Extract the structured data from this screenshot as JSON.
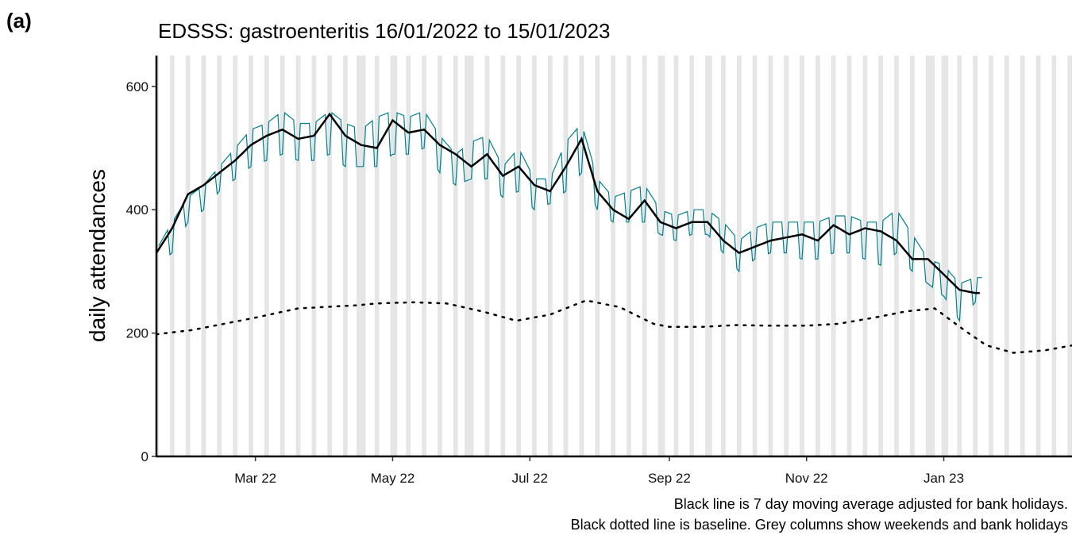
{
  "panel_label": "(a)",
  "chart_data": {
    "type": "line",
    "title": "EDSSS: gastroenteritis 16/01/2022 to 15/01/2023",
    "xlabel": "",
    "ylabel": "daily attendances",
    "ylim": [
      0,
      650
    ],
    "xlim": [
      "2022-01-16",
      "2023-02-27"
    ],
    "y_ticks": [
      0,
      200,
      400,
      600
    ],
    "x_ticks": [
      {
        "date": "2022-03-01",
        "label": "Mar 22"
      },
      {
        "date": "2022-05-01",
        "label": "May 22"
      },
      {
        "date": "2022-07-01",
        "label": "Jul 22"
      },
      {
        "date": "2022-09-01",
        "label": "Sep 22"
      },
      {
        "date": "2022-11-01",
        "label": "Nov 22"
      },
      {
        "date": "2023-01-01",
        "label": "Jan 23"
      }
    ],
    "grid": false,
    "shading": "weekends and bank holidays",
    "bank_holidays": [
      "2022-04-15",
      "2022-04-18",
      "2022-05-02",
      "2022-06-02",
      "2022-06-03",
      "2022-08-29",
      "2022-09-19",
      "2022-12-26",
      "2022-12-27",
      "2023-01-02"
    ],
    "colors": {
      "daily": "#00818f",
      "average": "#000000",
      "baseline": "#000000",
      "shade": "#e5e5e5"
    },
    "series": [
      {
        "style": "solid-teal",
        "x": [
          "2022-01-16",
          "2022-01-23",
          "2022-01-30",
          "2022-02-06",
          "2022-02-13",
          "2022-02-20",
          "2022-02-27",
          "2022-03-06",
          "2022-03-13",
          "2022-03-20",
          "2022-03-27",
          "2022-04-03",
          "2022-04-10",
          "2022-04-17",
          "2022-04-24",
          "2022-05-01",
          "2022-05-08",
          "2022-05-15",
          "2022-05-22",
          "2022-05-29",
          "2022-06-05",
          "2022-06-12",
          "2022-06-19",
          "2022-06-26",
          "2022-07-03",
          "2022-07-10",
          "2022-07-17",
          "2022-07-24",
          "2022-07-31",
          "2022-08-07",
          "2022-08-14",
          "2022-08-21",
          "2022-08-28",
          "2022-09-04",
          "2022-09-11",
          "2022-09-18",
          "2022-09-25",
          "2022-10-02",
          "2022-10-09",
          "2022-10-16",
          "2022-10-23",
          "2022-10-30",
          "2022-11-06",
          "2022-11-13",
          "2022-11-20",
          "2022-11-27",
          "2022-12-04",
          "2022-12-11",
          "2022-12-18",
          "2022-12-25",
          "2023-01-01",
          "2023-01-08",
          "2023-01-15"
        ],
        "weekday_level": [
          335,
          380,
          420,
          440,
          470,
          500,
          530,
          540,
          560,
          540,
          540,
          560,
          540,
          530,
          550,
          560,
          550,
          560,
          520,
          490,
          510,
          520,
          470,
          500,
          450,
          450,
          510,
          540,
          450,
          420,
          430,
          440,
          400,
          390,
          400,
          400,
          380,
          350,
          370,
          380,
          380,
          380,
          380,
          390,
          390,
          380,
          380,
          400,
          360,
          320,
          310,
          280,
          290
        ],
        "weekend_level": [
          310,
          330,
          380,
          400,
          430,
          450,
          470,
          480,
          490,
          480,
          480,
          490,
          470,
          470,
          470,
          490,
          490,
          500,
          460,
          440,
          450,
          450,
          420,
          430,
          400,
          410,
          430,
          460,
          400,
          380,
          380,
          380,
          360,
          350,
          360,
          360,
          330,
          300,
          320,
          330,
          330,
          320,
          320,
          330,
          330,
          320,
          310,
          330,
          300,
          280,
          260,
          220,
          250
        ]
      },
      {
        "name": "Black line is 7 day moving average adjusted for bank holidays.",
        "style": "solid-black",
        "x": [
          "2022-01-16",
          "2022-01-23",
          "2022-01-30",
          "2022-02-06",
          "2022-02-13",
          "2022-02-20",
          "2022-02-27",
          "2022-03-06",
          "2022-03-13",
          "2022-03-20",
          "2022-03-27",
          "2022-04-03",
          "2022-04-10",
          "2022-04-17",
          "2022-04-24",
          "2022-05-01",
          "2022-05-08",
          "2022-05-15",
          "2022-05-22",
          "2022-05-29",
          "2022-06-05",
          "2022-06-12",
          "2022-06-19",
          "2022-06-26",
          "2022-07-03",
          "2022-07-10",
          "2022-07-17",
          "2022-07-24",
          "2022-07-31",
          "2022-08-07",
          "2022-08-14",
          "2022-08-21",
          "2022-08-28",
          "2022-09-04",
          "2022-09-11",
          "2022-09-18",
          "2022-09-25",
          "2022-10-02",
          "2022-10-09",
          "2022-10-16",
          "2022-10-23",
          "2022-10-30",
          "2022-11-06",
          "2022-11-13",
          "2022-11-20",
          "2022-11-27",
          "2022-12-04",
          "2022-12-11",
          "2022-12-18",
          "2022-12-25",
          "2023-01-01",
          "2023-01-08",
          "2023-01-15"
        ],
        "y": [
          330,
          370,
          425,
          440,
          460,
          480,
          505,
          520,
          530,
          515,
          520,
          555,
          520,
          505,
          500,
          545,
          525,
          530,
          505,
          490,
          470,
          490,
          455,
          470,
          440,
          430,
          470,
          515,
          430,
          400,
          385,
          415,
          380,
          370,
          380,
          380,
          350,
          330,
          340,
          350,
          355,
          360,
          350,
          375,
          360,
          370,
          365,
          350,
          320,
          320,
          295,
          270,
          265
        ]
      },
      {
        "name": "Black dotted line is baseline.",
        "style": "dotted-black",
        "x": [
          "2022-01-16",
          "2022-02-01",
          "2022-03-01",
          "2022-03-20",
          "2022-04-15",
          "2022-04-24",
          "2022-05-10",
          "2022-05-25",
          "2022-06-10",
          "2022-06-25",
          "2022-07-10",
          "2022-07-26",
          "2022-08-10",
          "2022-08-25",
          "2022-09-01",
          "2022-09-15",
          "2022-10-01",
          "2022-10-15",
          "2022-11-01",
          "2022-11-15",
          "2022-12-01",
          "2022-12-15",
          "2022-12-28",
          "2023-01-10",
          "2023-01-20",
          "2023-02-01",
          "2023-02-15",
          "2023-02-27"
        ],
        "y": [
          198,
          205,
          225,
          240,
          245,
          248,
          250,
          248,
          235,
          220,
          230,
          253,
          242,
          215,
          210,
          210,
          213,
          212,
          212,
          215,
          225,
          235,
          240,
          205,
          180,
          168,
          172,
          180
        ]
      }
    ]
  },
  "caption": {
    "line1": "Black line is 7 day moving average adjusted for bank holidays.",
    "line2": "Black dotted line is baseline. Grey columns show weekends and bank holidays"
  }
}
